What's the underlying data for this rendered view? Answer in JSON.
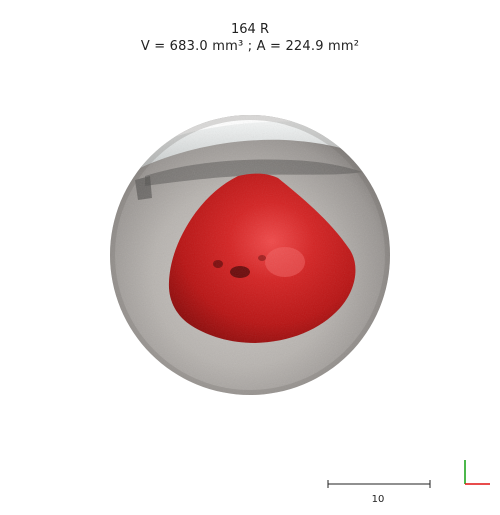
{
  "header": {
    "title": "164 R",
    "measurements": "V = 683.0 mm³ ; A = 224.9 mm²"
  },
  "viewport": {
    "subject": "3D skin surface scan with segmented lesion",
    "lesion_color": "#d01c1c",
    "skin_color": "#b9b6b3",
    "scale_bar": {
      "label": "10"
    },
    "axes": {
      "x_color": "#e01010",
      "y_color": "#10a010"
    }
  }
}
